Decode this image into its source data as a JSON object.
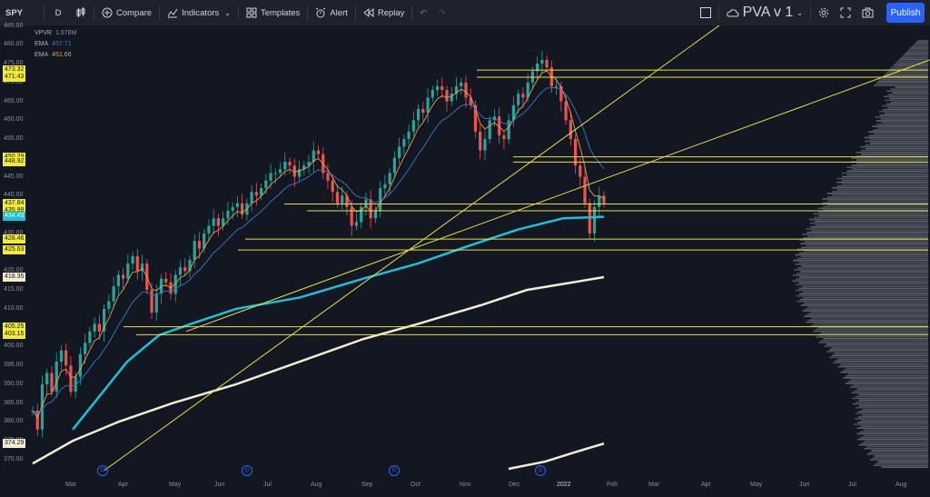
{
  "toolbar": {
    "symbol": "SPY",
    "interval": "D",
    "compare": "Compare",
    "indicators": "Indicators",
    "templates": "Templates",
    "alert": "Alert",
    "replay": "Replay",
    "layout_name": "PVA v 1",
    "publish": "Publish"
  },
  "legend": {
    "vpvr_label": "VPVR",
    "vpvr_value": "1.678M",
    "ema1_label": "EMA",
    "ema1_value": "457.71",
    "ema2_label": "EMA",
    "ema2_value": "451.66"
  },
  "colors": {
    "background": "#131722",
    "up": "#26a69a",
    "down": "#ef5350",
    "hline": "#e8e043",
    "ema_fast": "#e8a04a",
    "ema_mid": "#3a79c8",
    "ema_teal": "#1ec0d8",
    "ema_white": "#f3edd0",
    "publish": "#2962ff"
  },
  "chart_data": {
    "type": "candlestick",
    "ylim": [
      367,
      485
    ],
    "price_axis": [
      "485.00",
      "480.00",
      "475.00",
      "470.00",
      "465.00",
      "460.00",
      "455.00",
      "450.00",
      "445.00",
      "440.00",
      "435.00",
      "430.00",
      "425.00",
      "420.00",
      "415.00",
      "410.00",
      "405.00",
      "400.00",
      "395.00",
      "390.00",
      "385.00",
      "380.00",
      "375.00",
      "370.00"
    ],
    "highlighted_prices": [
      {
        "label": "473.32",
        "style": "yellow"
      },
      {
        "label": "471.43",
        "style": "yellow"
      },
      {
        "label": "450.29",
        "style": "yellow"
      },
      {
        "label": "448.92",
        "style": "yellow"
      },
      {
        "label": "437.84",
        "style": "yellow"
      },
      {
        "label": "435.99",
        "style": "yellow"
      },
      {
        "label": "434.43",
        "style": "teal"
      },
      {
        "label": "428.46",
        "style": "yellow"
      },
      {
        "label": "425.63",
        "style": "yellow"
      },
      {
        "label": "418.35",
        "style": "white"
      },
      {
        "label": "405.25",
        "style": "yellow"
      },
      {
        "label": "403.15",
        "style": "yellow"
      },
      {
        "label": "374.29",
        "style": "white"
      }
    ],
    "time_axis": [
      "Mar",
      "Apr",
      "May",
      "Jun",
      "Jul",
      "Aug",
      "Sep",
      "Oct",
      "Nov",
      "Dec",
      "2022",
      "Feb",
      "Mar",
      "Apr",
      "May",
      "Jun",
      "Jul",
      "Aug"
    ],
    "dividend_markers": [
      "D",
      "D",
      "D",
      "D"
    ],
    "price_path": [
      383,
      378,
      390,
      393,
      388,
      396,
      399,
      395,
      388,
      392,
      398,
      401,
      404,
      406,
      404,
      410,
      412,
      416,
      419,
      418,
      422,
      424,
      420,
      422,
      415,
      409,
      414,
      418,
      417,
      414,
      419,
      421,
      420,
      423,
      428,
      426,
      430,
      432,
      434,
      432,
      434,
      436,
      437,
      438,
      435,
      438,
      441,
      440,
      442,
      444,
      446,
      446,
      447,
      449,
      448,
      445,
      447,
      448,
      449,
      452,
      451,
      446,
      444,
      441,
      438,
      440,
      437,
      432,
      433,
      437,
      439,
      434,
      436,
      442,
      443,
      446,
      450,
      453,
      455,
      457,
      460,
      463,
      462,
      466,
      468,
      469,
      468,
      465,
      467,
      469,
      470,
      466,
      464,
      457,
      452,
      455,
      460,
      461,
      456,
      455,
      460,
      464,
      467,
      466,
      470,
      473,
      475,
      476,
      474,
      469,
      469,
      465,
      460,
      455,
      448,
      445,
      438,
      430,
      437,
      440,
      438
    ]
  }
}
